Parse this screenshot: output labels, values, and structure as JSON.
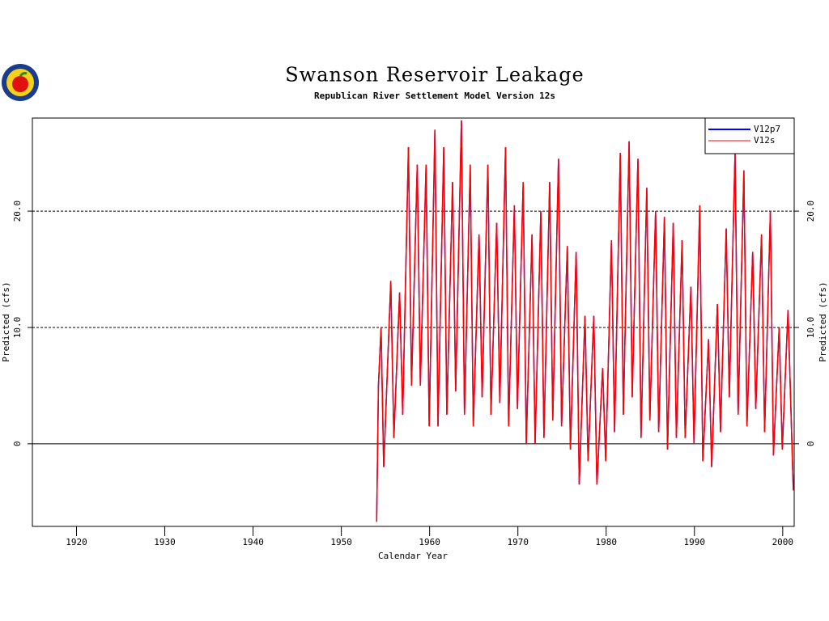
{
  "chart_data": {
    "type": "line",
    "title": "Swanson Reservoir Leakage",
    "subtitle": "Republican River Settlement Model Version 12s",
    "xlabel": "Calendar Year",
    "ylabel": "Predicted (cfs)",
    "xlim": [
      1915,
      2001.3
    ],
    "xticks": [
      1920,
      1930,
      1940,
      1950,
      1960,
      1970,
      1980,
      1990,
      2000
    ],
    "ylim": [
      -7.1,
      28
    ],
    "yticks": [
      {
        "value": 0,
        "label": "0"
      },
      {
        "value": 10,
        "label": "10.0"
      },
      {
        "value": 20,
        "label": "20.0"
      }
    ],
    "legend": "upper right",
    "x": [
      1954,
      1954.2,
      1954.5,
      1954.8,
      1955.6,
      1955.95,
      1956.6,
      1956.95,
      1957.6,
      1957.95,
      1958.6,
      1958.95,
      1959.6,
      1959.95,
      1960.6,
      1960.95,
      1961.6,
      1961.95,
      1962.6,
      1962.95,
      1963.6,
      1963.95,
      1964.6,
      1964.95,
      1965.6,
      1965.95,
      1966.6,
      1966.95,
      1967.6,
      1967.95,
      1968.6,
      1968.95,
      1969.6,
      1969.95,
      1970.6,
      1970.95,
      1971.6,
      1971.95,
      1972.6,
      1972.95,
      1973.6,
      1973.95,
      1974.6,
      1974.95,
      1975.6,
      1975.95,
      1976.6,
      1976.95,
      1977.6,
      1977.95,
      1978.6,
      1978.95,
      1979.6,
      1979.95,
      1980.6,
      1980.95,
      1981.6,
      1981.95,
      1982.6,
      1982.95,
      1983.6,
      1983.95,
      1984.6,
      1984.95,
      1985.6,
      1985.95,
      1986.6,
      1986.95,
      1987.6,
      1987.95,
      1988.6,
      1988.95,
      1989.6,
      1989.95,
      1990.6,
      1990.95,
      1991.6,
      1991.95,
      1992.6,
      1992.95,
      1993.6,
      1993.95,
      1994.6,
      1994.95,
      1995.6,
      1995.95,
      1996.6,
      1996.95,
      1997.6,
      1997.95,
      1998.6,
      1998.95,
      1999.6,
      1999.95,
      2000.6,
      2001.2
    ],
    "series": [
      {
        "name": "V12p7",
        "color": "#0000ff",
        "values": [
          -6.7,
          5,
          10,
          -2,
          14,
          0.5,
          13,
          2.5,
          25.5,
          5,
          24,
          5,
          24,
          1.5,
          27,
          1.5,
          25.5,
          2.5,
          22.5,
          4.5,
          27.8,
          2.5,
          24,
          1.5,
          18,
          4,
          24,
          2.5,
          19,
          3.5,
          25.5,
          1.5,
          20.5,
          3,
          22.5,
          0,
          18,
          0,
          20,
          0.5,
          22.5,
          2,
          24.5,
          1.5,
          17,
          -0.5,
          16.5,
          -3.5,
          11,
          -1.5,
          11,
          -3.5,
          6.5,
          -1.5,
          17.5,
          1,
          25,
          2.5,
          26,
          4,
          24.5,
          0.5,
          22,
          2,
          20,
          1,
          19.5,
          -0.5,
          19,
          0.5,
          17.5,
          0.5,
          13.5,
          0,
          20.5,
          -1.5,
          9,
          -2,
          12,
          1,
          18.5,
          4,
          25,
          2.5,
          23.5,
          1.5,
          16.5,
          3,
          18,
          1,
          20,
          -1,
          10,
          -0.5,
          11.5,
          -4
        ]
      },
      {
        "name": "V12s",
        "color": "#ff0000",
        "values": [
          -6.7,
          5,
          10,
          -2,
          14,
          0.5,
          13,
          2.5,
          25.5,
          5,
          24,
          5,
          24,
          1.5,
          27,
          1.5,
          25.5,
          2.5,
          22.5,
          4.5,
          27.8,
          2.5,
          24,
          1.5,
          18,
          4,
          24,
          2.5,
          19,
          3.5,
          25.5,
          1.5,
          20.5,
          3,
          22.5,
          0,
          18,
          0,
          20,
          0.5,
          22.5,
          2,
          24.5,
          1.5,
          17,
          -0.5,
          16.5,
          -3.5,
          11,
          -1.5,
          11,
          -3.5,
          6.5,
          -1.5,
          17.5,
          1,
          25,
          2.5,
          26,
          4,
          24.5,
          0.5,
          22,
          2,
          20,
          1,
          19.5,
          -0.5,
          19,
          0.5,
          17.5,
          0.5,
          13.5,
          0,
          20.5,
          -1.5,
          9,
          -2,
          12,
          1,
          18.5,
          4,
          25,
          2.5,
          23.5,
          1.5,
          16.5,
          3,
          18,
          1,
          20,
          -1,
          10,
          -0.5,
          11.5,
          -4
        ]
      }
    ]
  }
}
